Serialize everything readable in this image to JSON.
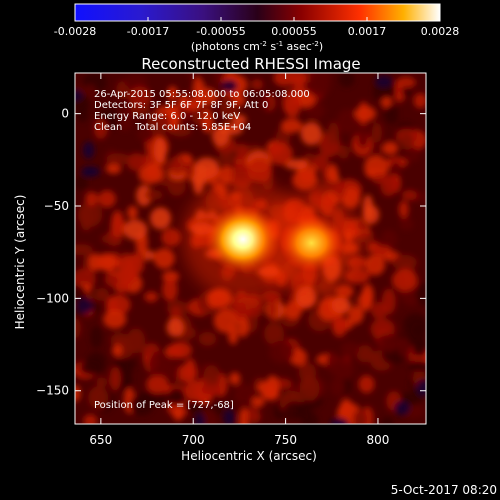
{
  "chart_data": {
    "type": "heatmap",
    "title": "Reconstructed RHESSI Image",
    "xlabel": "Heliocentric X (arcsec)",
    "ylabel": "Heliocentric Y (arcsec)",
    "xlim": [
      636,
      826
    ],
    "ylim": [
      -168,
      22
    ],
    "xticks": [
      650,
      700,
      750,
      800
    ],
    "yticks": [
      0,
      -50,
      -100,
      -150
    ],
    "colorbar": {
      "range": [
        -0.0028,
        0.0028
      ],
      "ticks": [
        "-0.0028",
        "-0.0017",
        "-0.00055",
        "0.00055",
        "0.0017",
        "0.0028"
      ],
      "units_prefix": "(photons cm",
      "units_exp1": "-2",
      "units_mid": " s",
      "units_exp2": "-1",
      "units_mid2": " asec",
      "units_exp3": "-2",
      "units_suffix": ")"
    },
    "annotations": {
      "time": "26-Apr-2015 05:55:08.000 to 06:05:08.000",
      "detectors": "Detectors: 3F 5F 6F 7F 8F 9F, Att 0",
      "energy": "Energy Range: 6.0 - 12.0 keV",
      "clean": "Clean    Total counts: 5.85E+04",
      "peak": "Position of Peak = [727,-68]"
    },
    "sources": [
      {
        "x": 727,
        "y": -68,
        "intensity": 1.0
      },
      {
        "x": 764,
        "y": -70,
        "intensity": 0.72
      }
    ],
    "footer_date": "5-Oct-2017 08:20"
  }
}
